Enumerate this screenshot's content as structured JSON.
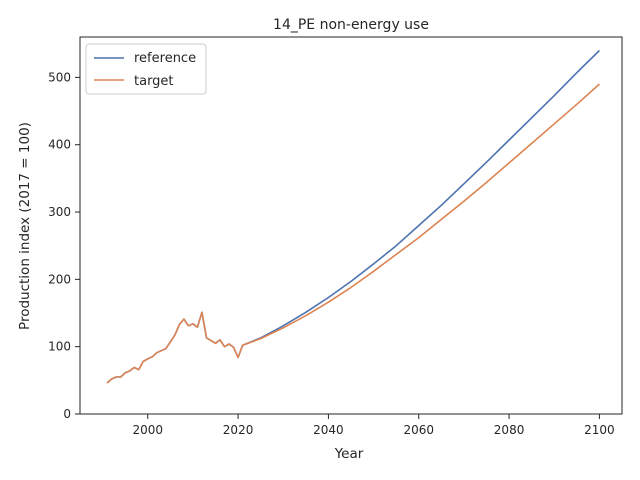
{
  "chart_data": {
    "type": "line",
    "title": "14_PE non-energy use",
    "xlabel": "Year",
    "ylabel": "Production index (2017 = 100)",
    "xlim": [
      1985,
      2105
    ],
    "ylim": [
      0,
      560
    ],
    "xticks": [
      2000,
      2020,
      2040,
      2060,
      2080,
      2100
    ],
    "yticks": [
      0,
      100,
      200,
      300,
      400,
      500
    ],
    "grid": false,
    "legend_position": "top-left",
    "series": [
      {
        "name": "reference",
        "color": "#4c72b0",
        "x": [
          1991,
          1992,
          1993,
          1994,
          1995,
          1996,
          1997,
          1998,
          1999,
          2000,
          2001,
          2002,
          2003,
          2004,
          2005,
          2006,
          2007,
          2008,
          2009,
          2010,
          2011,
          2012,
          2013,
          2014,
          2015,
          2016,
          2017,
          2018,
          2019,
          2020,
          2021,
          2025,
          2030,
          2035,
          2040,
          2045,
          2050,
          2055,
          2060,
          2065,
          2070,
          2075,
          2080,
          2085,
          2090,
          2095,
          2100
        ],
        "y": [
          46,
          52,
          55,
          55,
          61,
          64,
          69,
          66,
          78,
          82,
          85,
          91,
          94,
          97,
          107,
          117,
          133,
          141,
          131,
          134,
          129,
          151,
          113,
          109,
          105,
          110,
          100,
          104,
          99,
          84,
          102,
          113,
          131,
          151,
          173,
          197,
          223,
          250,
          280,
          310,
          342,
          374,
          407,
          440,
          473,
          507,
          540
        ]
      },
      {
        "name": "target",
        "color": "#dd8452",
        "x": [
          1991,
          1992,
          1993,
          1994,
          1995,
          1996,
          1997,
          1998,
          1999,
          2000,
          2001,
          2002,
          2003,
          2004,
          2005,
          2006,
          2007,
          2008,
          2009,
          2010,
          2011,
          2012,
          2013,
          2014,
          2015,
          2016,
          2017,
          2018,
          2019,
          2020,
          2021,
          2025,
          2030,
          2035,
          2040,
          2045,
          2050,
          2055,
          2060,
          2065,
          2070,
          2075,
          2080,
          2085,
          2090,
          2095,
          2100
        ],
        "y": [
          46,
          52,
          55,
          55,
          61,
          64,
          69,
          66,
          78,
          82,
          85,
          91,
          94,
          97,
          107,
          117,
          133,
          141,
          131,
          134,
          129,
          151,
          113,
          109,
          105,
          110,
          100,
          104,
          99,
          84,
          102,
          112,
          128,
          146,
          166,
          188,
          212,
          237,
          262,
          289,
          316,
          344,
          373,
          402,
          431,
          460,
          490
        ]
      }
    ]
  }
}
